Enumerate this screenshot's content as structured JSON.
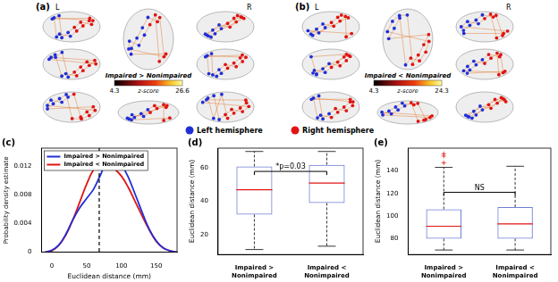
{
  "brain_panels": [
    {
      "label": "(a)",
      "hemisphere_labels": [
        "L",
        "R"
      ],
      "colorbar": {
        "title": "Impaired > Nonimpaired",
        "range": [
          4.3,
          26.6
        ],
        "label": "z-score"
      }
    },
    {
      "label": "(b)",
      "hemisphere_labels": [
        "L",
        "R"
      ],
      "colorbar": {
        "title": "Impaired < Nonimpaired",
        "range": [
          4.3,
          24.3
        ],
        "label": "z-score"
      }
    }
  ],
  "hemisphere_legend": [
    {
      "name": "Left hemisphere",
      "color": "#1f2fd8"
    },
    {
      "name": "Right hemisphere",
      "color": "#e01414"
    }
  ],
  "chart_data": [
    {
      "panel_label": "(c)",
      "type": "line",
      "x_label": "Euclidean distance (mm)",
      "y_label": "Probability density estimate",
      "x": [
        -10,
        0,
        10,
        20,
        30,
        40,
        50,
        60,
        70,
        80,
        90,
        100,
        110,
        120,
        130,
        140,
        150,
        160,
        170,
        180
      ],
      "series": [
        {
          "name": "Impaired > Nonimpaired",
          "color": "#1f2fd8",
          "values": [
            0,
            0.0003,
            0.001,
            0.0025,
            0.0045,
            0.0062,
            0.0075,
            0.0088,
            0.0108,
            0.0128,
            0.0132,
            0.0122,
            0.0104,
            0.008,
            0.0055,
            0.0032,
            0.0016,
            0.0006,
            0.0002,
            0
          ]
        },
        {
          "name": "Impaired < Nonimpaired",
          "color": "#e01414",
          "values": [
            0,
            0.0002,
            0.001,
            0.0024,
            0.0045,
            0.007,
            0.0095,
            0.0115,
            0.0124,
            0.0123,
            0.0116,
            0.0106,
            0.009,
            0.007,
            0.005,
            0.0031,
            0.0015,
            0.0006,
            0.0002,
            0
          ]
        }
      ],
      "vline": {
        "x": 68,
        "color": "#000000",
        "line_style": "dashed"
      },
      "xlim": [
        -15,
        180
      ],
      "xticks": [
        0,
        50,
        100,
        150
      ],
      "ylim": [
        0,
        0.0145
      ],
      "yticks": [
        0,
        0.004,
        0.008,
        0.012
      ],
      "legend": "upper left",
      "grid": false
    },
    {
      "panel_label": "(d)",
      "type": "box",
      "y_label": "Euclidean distance (mm)",
      "categories": [
        "Impaired > Nonimpaired",
        "Impaired < Nonimpaired"
      ],
      "color": "#6f7fd6",
      "boxes": [
        {
          "min": 11,
          "q1": 32,
          "median": 47,
          "q3": 61,
          "max": 70,
          "outliers": []
        },
        {
          "min": 13,
          "q1": 39,
          "median": 51,
          "q3": 62,
          "max": 70,
          "outliers": []
        }
      ],
      "annotation": {
        "text": "*p=0.03",
        "between": [
          0,
          1
        ],
        "at": 58
      },
      "ylim": [
        8,
        72
      ],
      "yticks": [
        20,
        40,
        60
      ],
      "grid": false
    },
    {
      "panel_label": "(e)",
      "type": "box",
      "y_label": "Euclidean distance (mm)",
      "categories": [
        "Impaired > Nonimpaired",
        "Impaired < Nonimpaired"
      ],
      "color": "#6f7fd6",
      "boxes": [
        {
          "min": 70,
          "q1": 80,
          "median": 91,
          "q3": 106,
          "max": 143,
          "outliers": [
            147,
            153,
            155
          ]
        },
        {
          "min": 70,
          "q1": 80,
          "median": 93,
          "q3": 108,
          "max": 144,
          "outliers": []
        }
      ],
      "annotation": {
        "text": "NS",
        "between": [
          0,
          1
        ],
        "at": 121
      },
      "ylim": [
        66,
        160
      ],
      "yticks": [
        80,
        100,
        120,
        140
      ],
      "grid": false
    }
  ]
}
